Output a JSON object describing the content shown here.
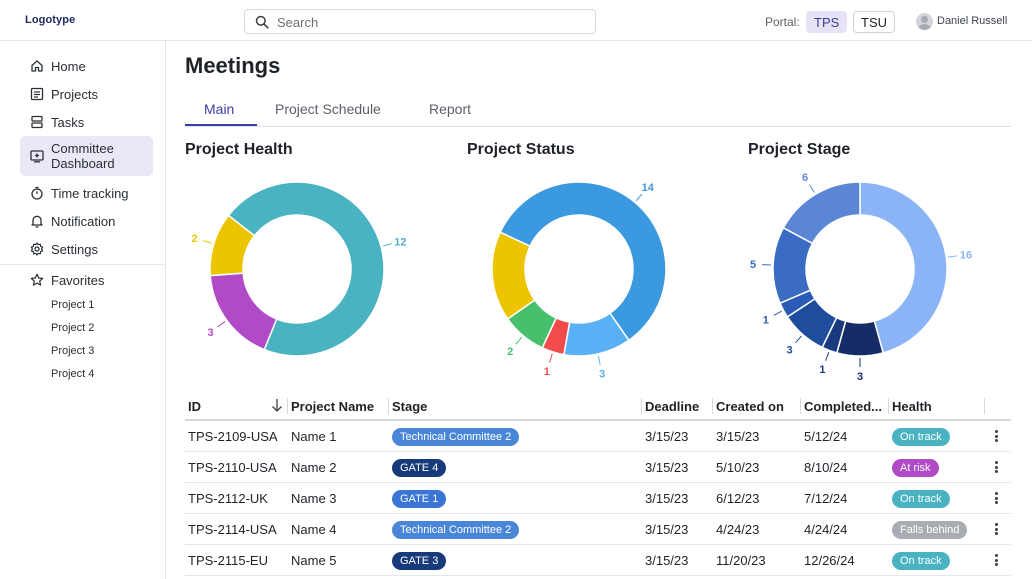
{
  "header": {
    "logo": "Logotype",
    "search_placeholder": "Search",
    "portal_label": "Portal:",
    "portals": [
      "TPS",
      "TSU"
    ],
    "active_portal": "TPS",
    "user_name": "Daniel Russell"
  },
  "sidebar": {
    "items": [
      {
        "label": "Home",
        "icon": "home-icon"
      },
      {
        "label": "Projects",
        "icon": "projects-icon"
      },
      {
        "label": "Tasks",
        "icon": "tasks-icon"
      },
      {
        "label": "Committee Dashboard",
        "icon": "dashboard-icon",
        "active": true
      },
      {
        "label": "Time tracking",
        "icon": "timer-icon"
      },
      {
        "label": "Notification",
        "icon": "bell-icon"
      },
      {
        "label": "Settings",
        "icon": "gear-icon"
      }
    ],
    "favorites_label": "Favorites",
    "favorites": [
      "Project 1",
      "Project 2",
      "Project 3",
      "Project 4"
    ]
  },
  "main": {
    "title": "Meetings",
    "tabs": [
      "Main",
      "Project Schedule",
      "Report"
    ],
    "active_tab": "Main"
  },
  "chart_data": [
    {
      "type": "donut",
      "title": "Project Health",
      "slices": [
        {
          "value": 12,
          "color": "#4ab3c2"
        },
        {
          "value": 3,
          "color": "#b04ac7"
        },
        {
          "value": 2,
          "color": "#ecc400"
        }
      ]
    },
    {
      "type": "donut",
      "title": "Project Status",
      "slices": [
        {
          "value": 14,
          "color": "#3b99e0"
        },
        {
          "value": 3,
          "color": "#5ab0f5"
        },
        {
          "value": 1,
          "color": "#f24b4b"
        },
        {
          "value": 2,
          "color": "#48c06b"
        },
        {
          "value": 4,
          "color": "#ecc400",
          "label": ""
        }
      ]
    },
    {
      "type": "donut",
      "title": "Project Stage",
      "slices": [
        {
          "value": 16,
          "color": "#8ab4f5"
        },
        {
          "value": 3,
          "color": "#152c66"
        },
        {
          "value": 1,
          "color": "#1a3a80"
        },
        {
          "value": 3,
          "color": "#1f4d9e"
        },
        {
          "value": 1,
          "color": "#2a5cb5"
        },
        {
          "value": 5,
          "color": "#3a6cc4"
        },
        {
          "value": 6,
          "color": "#5b86d6"
        }
      ]
    }
  ],
  "table": {
    "columns": [
      "ID",
      "Project Name",
      "Stage",
      "Deadline",
      "Created on",
      "Completed...",
      "Health"
    ],
    "rows": [
      {
        "id": "TPS-2109-USA",
        "name": "Name 1",
        "stage": "Technical Committee 2",
        "stage_color": "#4a86d8",
        "deadline": "3/15/23",
        "created": "3/15/23",
        "completed": "5/12/24",
        "health": "On track",
        "health_color": "#4ab3c2"
      },
      {
        "id": "TPS-2110-USA",
        "name": "Name 2",
        "stage": "GATE 4",
        "stage_color": "#163a7a",
        "deadline": "3/15/23",
        "created": "5/10/23",
        "completed": "8/10/24",
        "health": "At risk",
        "health_color": "#b04ac7"
      },
      {
        "id": "TPS-2112-UK",
        "name": "Name 3",
        "stage": "GATE 1",
        "stage_color": "#3a75d6",
        "deadline": "3/15/23",
        "created": "6/12/23",
        "completed": "7/12/24",
        "health": "On track",
        "health_color": "#4ab3c2"
      },
      {
        "id": "TPS-2114-USA",
        "name": "Name 4",
        "stage": "Technical Committee 2",
        "stage_color": "#4a86d8",
        "deadline": "3/15/23",
        "created": "4/24/23",
        "completed": "4/24/24",
        "health": "Falls behind",
        "health_color": "#a9adb3"
      },
      {
        "id": "TPS-2115-EU",
        "name": "Name 5",
        "stage": "GATE 3",
        "stage_color": "#163a7a",
        "deadline": "3/15/23",
        "created": "11/20/23",
        "completed": "12/26/24",
        "health": "On track",
        "health_color": "#4ab3c2"
      }
    ]
  }
}
